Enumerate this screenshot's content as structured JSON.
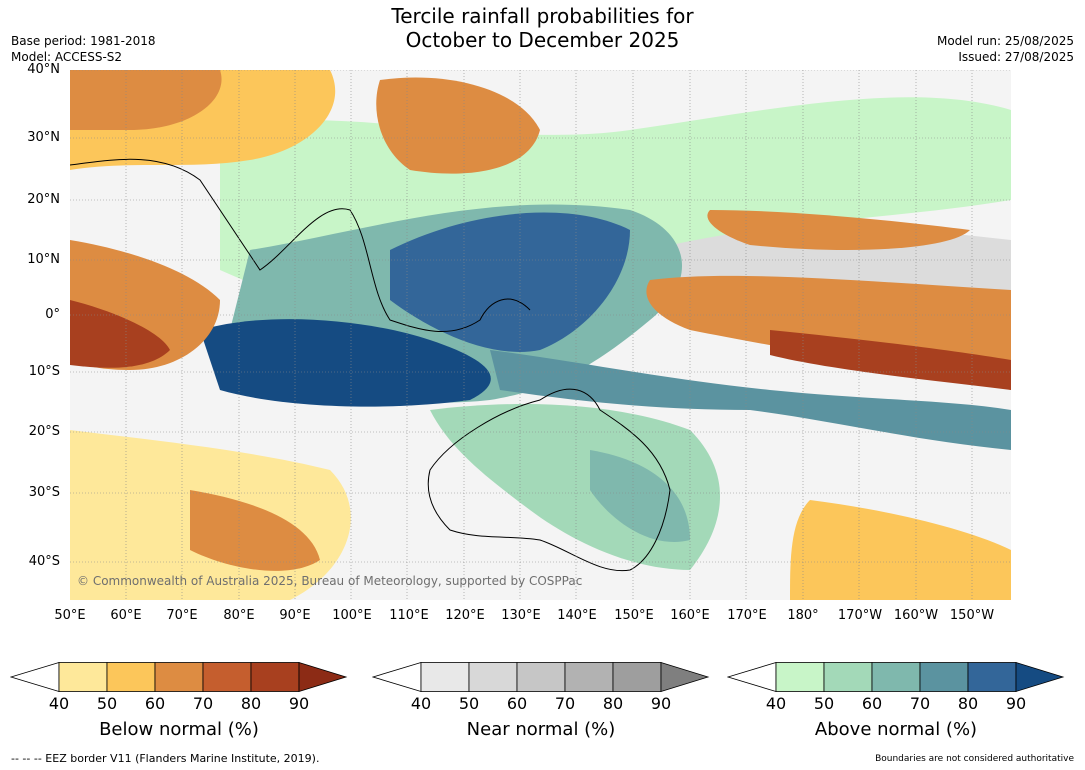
{
  "header": {
    "title_line1": "Tercile rainfall probabilities for",
    "title_line2": "October to December 2025",
    "base_period": "Base period: 1981-2018",
    "model": "Model: ACCESS-S2",
    "model_run": "Model run: 25/08/2025",
    "issued": "Issued: 27/08/2025"
  },
  "map": {
    "lat_labels": [
      "40°N",
      "30°N",
      "20°N",
      "10°N",
      "0°",
      "10°S",
      "20°S",
      "30°S",
      "40°S"
    ],
    "lon_labels": [
      "50°E",
      "60°E",
      "70°E",
      "80°E",
      "90°E",
      "100°E",
      "110°E",
      "120°E",
      "130°E",
      "140°E",
      "150°E",
      "160°E",
      "170°E",
      "180°",
      "170°W",
      "160°W",
      "150°W"
    ],
    "copyright": "© Commonwealth of Australia 2025, Bureau of Meteorology, supported by COSPPac"
  },
  "legends": [
    {
      "title": "Below normal (%)",
      "ticks": [
        "40",
        "50",
        "60",
        "70",
        "80",
        "90"
      ],
      "colors": [
        "#ffffff",
        "#fee89a",
        "#fcc65a",
        "#dd8c42",
        "#c55e2e",
        "#a8401f",
        "#8c2b15"
      ]
    },
    {
      "title": "Near normal (%)",
      "ticks": [
        "40",
        "50",
        "60",
        "70",
        "80",
        "90"
      ],
      "colors": [
        "#ffffff",
        "#e8e8e8",
        "#d8d8d8",
        "#c6c6c6",
        "#b2b2b2",
        "#9e9e9e",
        "#7f7f7f"
      ]
    },
    {
      "title": "Above normal (%)",
      "ticks": [
        "40",
        "50",
        "60",
        "70",
        "80",
        "90"
      ],
      "colors": [
        "#ffffff",
        "#c8f5c8",
        "#a3d9b8",
        "#7fb8ad",
        "#5b93a0",
        "#336699",
        "#154b82"
      ]
    }
  ],
  "footer": {
    "eez_note": "--  --  -- EEZ border V11 (Flanders Marine Institute, 2019).",
    "disclaimer": "Boundaries are not considered authoritative"
  }
}
